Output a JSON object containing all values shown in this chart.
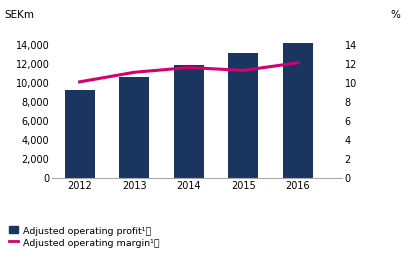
{
  "years": [
    2012,
    2013,
    2014,
    2015,
    2016
  ],
  "profit": [
    9200,
    10500,
    11800,
    13000,
    14100
  ],
  "margin": [
    10.0,
    11.0,
    11.5,
    11.2,
    12.0
  ],
  "bar_color": "#1a3560",
  "line_color": "#d4006e",
  "ylabel_left": "SEKm",
  "ylabel_right": "%",
  "ylim_left": [
    0,
    16000
  ],
  "ylim_right": [
    0,
    16
  ],
  "yticks_left": [
    0,
    2000,
    4000,
    6000,
    8000,
    10000,
    12000,
    14000
  ],
  "yticks_right": [
    0,
    2,
    4,
    6,
    8,
    10,
    12,
    14
  ],
  "legend_profit": "Adjusted operating profit¹⧧",
  "legend_margin": "Adjusted operating margin¹⧧",
  "background_color": "#ffffff",
  "bar_width": 0.55
}
